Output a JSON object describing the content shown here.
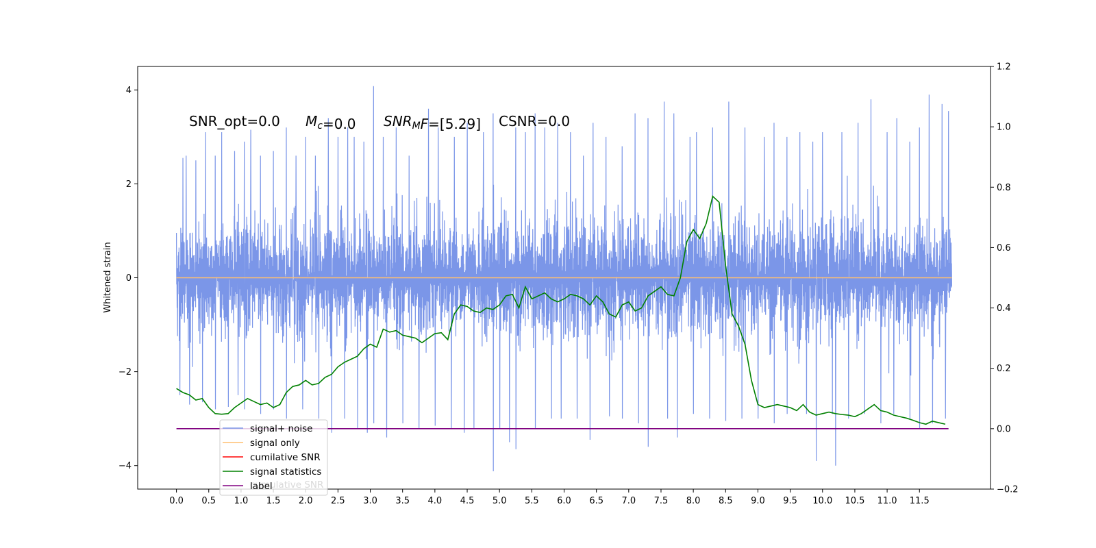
{
  "chart_data": {
    "type": "line",
    "title": "",
    "xlabel": "",
    "ylabel": "Whitened strain",
    "xlim": [
      -0.6,
      12.6
    ],
    "ylim": [
      -4.5,
      4.5
    ],
    "y2lim": [
      -0.2,
      1.2
    ],
    "x_ticks": [
      "0.0",
      "0.5",
      "1.0",
      "1.5",
      "2.0",
      "2.5",
      "3.0",
      "3.5",
      "4.0",
      "4.5",
      "5.0",
      "5.5",
      "6.0",
      "6.5",
      "7.0",
      "7.5",
      "8.0",
      "8.5",
      "9.0",
      "9.5",
      "10.0",
      "10.5",
      "11.0",
      "11.5"
    ],
    "y_ticks": [
      "4",
      "2",
      "0",
      "−2",
      "−4"
    ],
    "y2_ticks": [
      "1.2",
      "1.0",
      "0.8",
      "0.6",
      "0.4",
      "0.2",
      "0.0",
      "−0.2"
    ],
    "annotations": [
      {
        "segments": [
          {
            "t": "SNR_opt=0.0"
          }
        ]
      },
      {
        "segments": [
          {
            "t": "M",
            "i": true
          },
          {
            "t": "c",
            "i": true,
            "sub": true
          },
          {
            "t": "=0.0"
          }
        ]
      },
      {
        "segments": [
          {
            "t": "SNR",
            "i": true
          },
          {
            "t": "M",
            "i": true,
            "sub": true
          },
          {
            "t": "F",
            "i": true
          },
          {
            "t": "=[5.29]"
          }
        ]
      },
      {
        "segments": [
          {
            "t": "CSNR=0.0"
          }
        ]
      }
    ],
    "legend_position": "lower-left",
    "legend": [
      {
        "label": "signal+ noise",
        "color": "#7b96e8"
      },
      {
        "label": "signal only",
        "color": "#ffbf70"
      },
      {
        "label": "cumilative SNR",
        "color": "#ff0000"
      },
      {
        "label": "signal statistics",
        "color": "#008000"
      },
      {
        "label": "label",
        "color": "#800080"
      }
    ],
    "hidden_legend_text": "cumulative SNR",
    "series": [
      {
        "name": "signal+ noise",
        "axis": "left",
        "color": "#7b96e8",
        "x_range": [
          0.0,
          12.0
        ],
        "typical_range": [
          -1.5,
          1.5
        ],
        "spikes_up": [
          [
            0.1,
            2.55
          ],
          [
            0.15,
            2.6
          ],
          [
            0.3,
            2.5
          ],
          [
            0.45,
            3.1
          ],
          [
            0.6,
            2.6
          ],
          [
            0.7,
            3.1
          ],
          [
            0.9,
            2.7
          ],
          [
            1.05,
            2.9
          ],
          [
            1.15,
            3.15
          ],
          [
            1.3,
            2.6
          ],
          [
            1.5,
            2.7
          ],
          [
            1.7,
            3.2
          ],
          [
            1.85,
            2.6
          ],
          [
            2.0,
            3.0
          ],
          [
            2.15,
            2.6
          ],
          [
            2.35,
            3.4
          ],
          [
            2.5,
            3.0
          ],
          [
            2.65,
            3.2
          ],
          [
            2.75,
            3.0
          ],
          [
            2.9,
            2.9
          ],
          [
            3.05,
            4.08
          ],
          [
            3.2,
            3.0
          ],
          [
            3.4,
            3.2
          ],
          [
            3.6,
            2.6
          ],
          [
            3.9,
            3.6
          ],
          [
            4.05,
            3.2
          ],
          [
            4.3,
            3.0
          ],
          [
            4.5,
            3.3
          ],
          [
            4.75,
            3.1
          ],
          [
            4.9,
            3.5
          ],
          [
            5.25,
            3.2
          ],
          [
            5.4,
            3.1
          ],
          [
            5.55,
            3.5
          ],
          [
            5.7,
            3.2
          ],
          [
            5.9,
            3.3
          ],
          [
            6.1,
            3.1
          ],
          [
            6.3,
            2.6
          ],
          [
            6.45,
            3.3
          ],
          [
            6.65,
            3.0
          ],
          [
            6.9,
            2.8
          ],
          [
            7.1,
            3.5
          ],
          [
            7.3,
            3.4
          ],
          [
            7.55,
            3.75
          ],
          [
            7.7,
            3.5
          ],
          [
            7.95,
            3.0
          ],
          [
            8.05,
            3.1
          ],
          [
            8.3,
            3.2
          ],
          [
            8.55,
            3.75
          ],
          [
            8.8,
            3.2
          ],
          [
            9.1,
            3.0
          ],
          [
            9.25,
            3.3
          ],
          [
            9.45,
            3.0
          ],
          [
            9.65,
            3.1
          ],
          [
            9.85,
            2.9
          ],
          [
            10.0,
            3.1
          ],
          [
            10.3,
            3.1
          ],
          [
            10.55,
            3.3
          ],
          [
            10.75,
            3.8
          ],
          [
            11.0,
            3.1
          ],
          [
            11.15,
            3.4
          ],
          [
            11.35,
            2.9
          ],
          [
            11.5,
            3.2
          ],
          [
            11.65,
            3.9
          ],
          [
            11.85,
            3.7
          ],
          [
            11.95,
            3.55
          ]
        ],
        "spikes_down": [
          [
            0.05,
            -2.5
          ],
          [
            0.2,
            -2.7
          ],
          [
            0.4,
            -2.65
          ],
          [
            0.6,
            -2.8
          ],
          [
            0.8,
            -2.75
          ],
          [
            0.95,
            -2.5
          ],
          [
            1.05,
            -2.8
          ],
          [
            1.3,
            -2.9
          ],
          [
            1.5,
            -2.8
          ],
          [
            1.7,
            -3.0
          ],
          [
            1.95,
            -2.8
          ],
          [
            2.2,
            -3.0
          ],
          [
            2.4,
            -3.3
          ],
          [
            2.6,
            -3.0
          ],
          [
            2.8,
            -3.2
          ],
          [
            2.95,
            -3.3
          ],
          [
            3.05,
            -3.1
          ],
          [
            3.25,
            -3.4
          ],
          [
            3.5,
            -3.1
          ],
          [
            3.75,
            -3.2
          ],
          [
            4.0,
            -3.15
          ],
          [
            4.25,
            -3.2
          ],
          [
            4.45,
            -3.3
          ],
          [
            4.6,
            -3.2
          ],
          [
            4.9,
            -4.12
          ],
          [
            5.0,
            -3.2
          ],
          [
            5.15,
            -3.5
          ],
          [
            5.25,
            -3.65
          ],
          [
            5.55,
            -3.2
          ],
          [
            5.8,
            -3.0
          ],
          [
            5.95,
            -3.0
          ],
          [
            6.2,
            -3.0
          ],
          [
            6.4,
            -3.45
          ],
          [
            6.7,
            -2.95
          ],
          [
            6.9,
            -3.0
          ],
          [
            7.15,
            -3.1
          ],
          [
            7.3,
            -3.6
          ],
          [
            7.6,
            -3.0
          ],
          [
            7.75,
            -3.4
          ],
          [
            8.0,
            -2.9
          ],
          [
            8.25,
            -3.0
          ],
          [
            8.5,
            -3.05
          ],
          [
            8.75,
            -3.0
          ],
          [
            9.0,
            -3.0
          ],
          [
            9.25,
            -3.1
          ],
          [
            9.45,
            -2.9
          ],
          [
            9.75,
            -2.9
          ],
          [
            9.9,
            -3.9
          ],
          [
            10.15,
            -2.9
          ],
          [
            10.2,
            -4.0
          ],
          [
            10.4,
            -3.0
          ],
          [
            10.65,
            -2.9
          ],
          [
            10.9,
            -3.1
          ],
          [
            11.1,
            -2.9
          ],
          [
            11.35,
            -3.0
          ],
          [
            11.5,
            -3.2
          ],
          [
            11.7,
            -3.1
          ],
          [
            11.9,
            -3.0
          ]
        ]
      },
      {
        "name": "signal only",
        "axis": "left",
        "color": "#ffbf70",
        "x": [
          0.0,
          12.0
        ],
        "y": [
          0.0,
          0.0
        ]
      },
      {
        "name": "signal statistics",
        "axis": "right",
        "color": "#008000",
        "x": [
          0.0,
          0.1,
          0.2,
          0.3,
          0.4,
          0.5,
          0.6,
          0.7,
          0.8,
          0.9,
          1.0,
          1.1,
          1.2,
          1.3,
          1.4,
          1.5,
          1.6,
          1.7,
          1.8,
          1.9,
          2.0,
          2.1,
          2.2,
          2.3,
          2.4,
          2.5,
          2.6,
          2.7,
          2.8,
          2.9,
          3.0,
          3.1,
          3.2,
          3.3,
          3.4,
          3.5,
          3.6,
          3.7,
          3.8,
          3.9,
          4.0,
          4.1,
          4.2,
          4.3,
          4.4,
          4.5,
          4.6,
          4.7,
          4.8,
          4.9,
          5.0,
          5.1,
          5.2,
          5.3,
          5.4,
          5.5,
          5.6,
          5.7,
          5.8,
          5.9,
          6.0,
          6.1,
          6.2,
          6.3,
          6.4,
          6.5,
          6.6,
          6.7,
          6.8,
          6.9,
          7.0,
          7.1,
          7.2,
          7.3,
          7.4,
          7.5,
          7.6,
          7.7,
          7.8,
          7.9,
          8.0,
          8.1,
          8.2,
          8.3,
          8.4,
          8.5,
          8.6,
          8.7,
          8.8,
          8.9,
          9.0,
          9.1,
          9.2,
          9.3,
          9.4,
          9.5,
          9.6,
          9.7,
          9.8,
          9.9,
          10.0,
          10.1,
          10.2,
          10.3,
          10.4,
          10.5,
          10.6,
          10.7,
          10.8,
          10.9,
          11.0,
          11.1,
          11.2,
          11.3,
          11.4,
          11.5,
          11.6,
          11.7,
          11.8,
          11.9
        ],
        "y": [
          0.133,
          0.12,
          0.112,
          0.095,
          0.1,
          0.07,
          0.05,
          0.048,
          0.05,
          0.07,
          0.085,
          0.1,
          0.09,
          0.08,
          0.085,
          0.07,
          0.08,
          0.12,
          0.14,
          0.145,
          0.16,
          0.145,
          0.15,
          0.17,
          0.18,
          0.205,
          0.22,
          0.23,
          0.24,
          0.265,
          0.28,
          0.27,
          0.33,
          0.32,
          0.325,
          0.31,
          0.305,
          0.3,
          0.285,
          0.3,
          0.315,
          0.318,
          0.295,
          0.38,
          0.41,
          0.405,
          0.39,
          0.385,
          0.4,
          0.395,
          0.41,
          0.44,
          0.445,
          0.4,
          0.47,
          0.43,
          0.44,
          0.45,
          0.43,
          0.42,
          0.43,
          0.445,
          0.44,
          0.43,
          0.41,
          0.44,
          0.42,
          0.38,
          0.37,
          0.41,
          0.42,
          0.39,
          0.4,
          0.44,
          0.455,
          0.47,
          0.445,
          0.44,
          0.5,
          0.62,
          0.66,
          0.63,
          0.68,
          0.77,
          0.75,
          0.54,
          0.38,
          0.34,
          0.28,
          0.16,
          0.08,
          0.07,
          0.075,
          0.08,
          0.075,
          0.07,
          0.06,
          0.08,
          0.055,
          0.045,
          0.05,
          0.055,
          0.05,
          0.047,
          0.045,
          0.04,
          0.05,
          0.065,
          0.08,
          0.06,
          0.055,
          0.045,
          0.04,
          0.035,
          0.028,
          0.02,
          0.015,
          0.025,
          0.02,
          0.015
        ]
      },
      {
        "name": "label",
        "axis": "right",
        "color": "#800080",
        "x": [
          0.0,
          11.95
        ],
        "y": [
          0.0,
          0.0
        ]
      }
    ]
  }
}
